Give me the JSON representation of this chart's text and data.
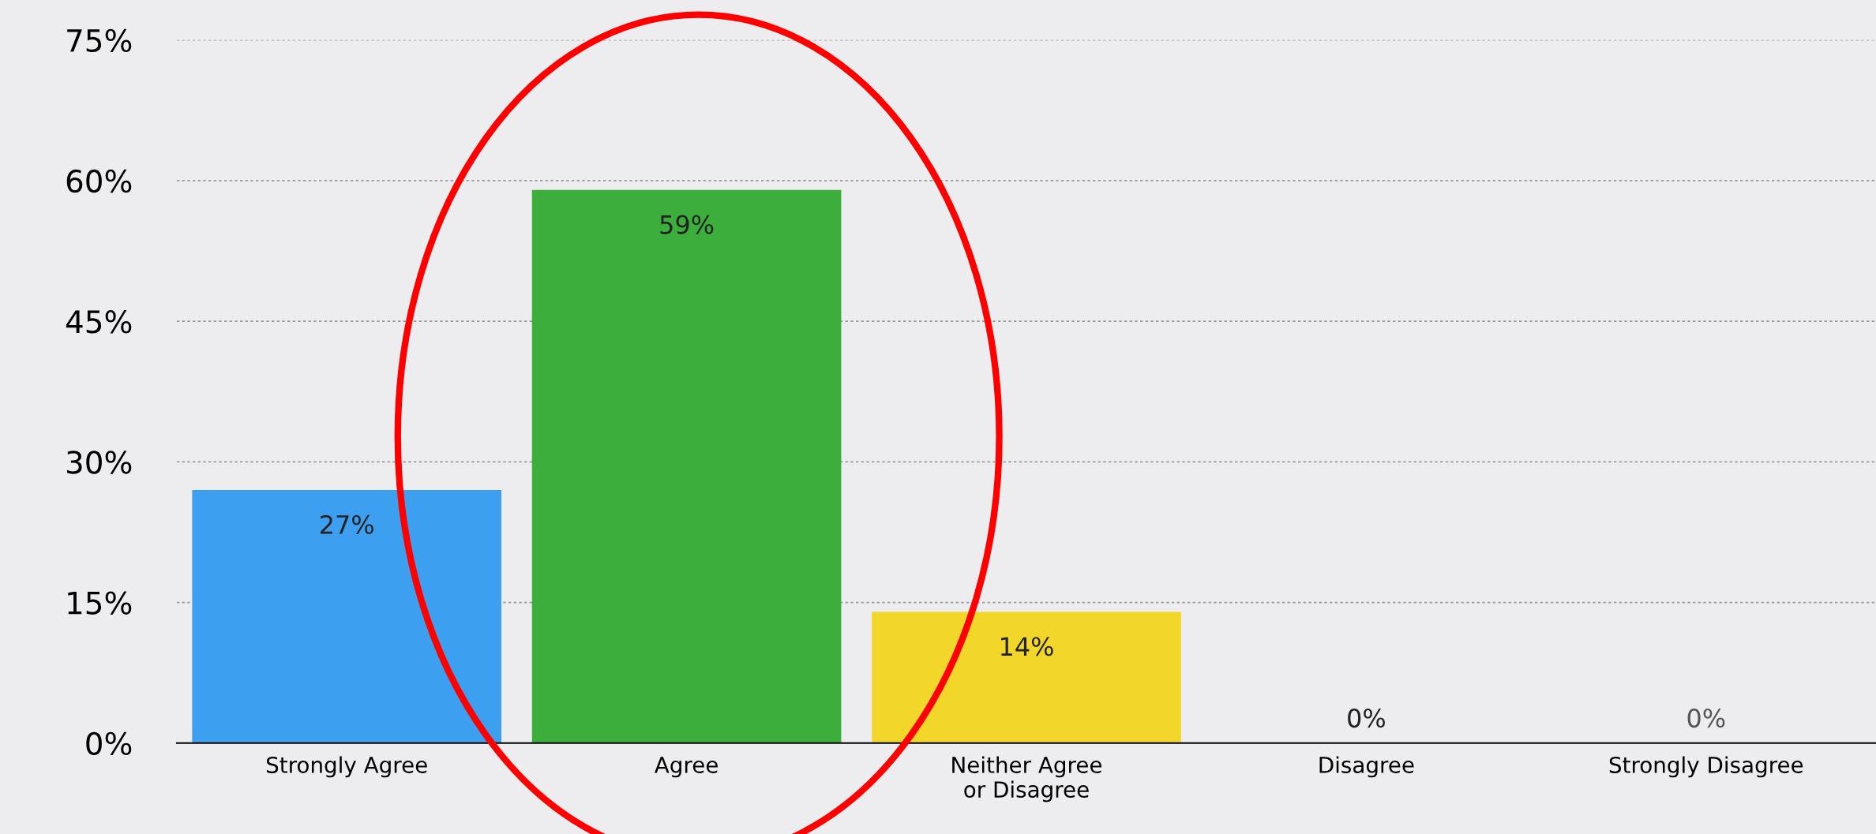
{
  "chart_data": {
    "type": "bar",
    "categories": [
      "Strongly Agree",
      "Agree",
      "Neither Agree\nor Disagree",
      "Disagree",
      "Strongly Disagree"
    ],
    "values": [
      27,
      59,
      14,
      0,
      0
    ],
    "colors": [
      "#3d9ff0",
      "#3cae3c",
      "#f2d62a",
      "#bbbbbb",
      "#bbbbbb"
    ],
    "ylim": [
      0,
      75
    ],
    "yticks": [
      {
        "value": 0,
        "label": "0%"
      },
      {
        "value": 15,
        "label": "15%"
      },
      {
        "value": 30,
        "label": "30%"
      },
      {
        "value": 45,
        "label": "45%"
      },
      {
        "value": 60,
        "label": "60%"
      },
      {
        "value": 75,
        "label": "75%"
      }
    ],
    "value_labels": [
      "27%",
      "59%",
      "14%",
      "0%",
      "0%"
    ],
    "grid": "y"
  }
}
